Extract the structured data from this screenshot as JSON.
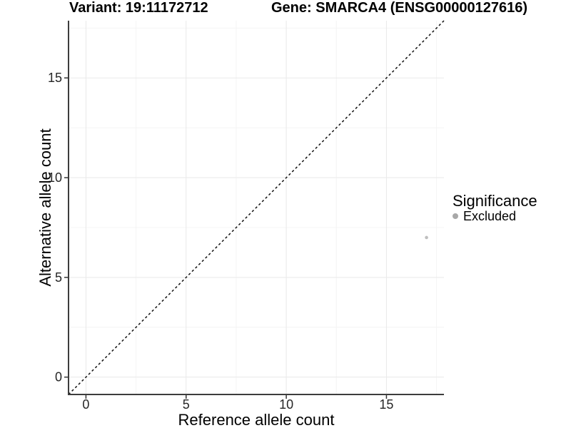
{
  "header": {
    "variant_title": "Variant: 19:11172712",
    "gene_title": "Gene: SMARCA4 (ENSG00000127616)"
  },
  "chart_data": {
    "type": "scatter",
    "xlabel": "Reference allele count",
    "ylabel": "Alternative allele count",
    "xlim": [
      -0.87,
      17.87
    ],
    "ylim": [
      -0.87,
      17.87
    ],
    "xticks": [
      0,
      5,
      10,
      15
    ],
    "yticks": [
      0,
      5,
      10,
      15
    ],
    "x_minor": [
      2.5,
      7.5,
      12.5,
      17.5
    ],
    "y_minor": [
      2.5,
      7.5,
      12.5,
      17.5
    ],
    "grid": true,
    "legend_position": "right",
    "identity_line": {
      "slope": 1,
      "intercept": 0,
      "style": "dashed",
      "color": "#111111"
    },
    "legend": {
      "title": "Significance",
      "items": [
        {
          "label": "Excluded",
          "color": "#a8a8a8"
        }
      ]
    },
    "series": [
      {
        "name": "Excluded",
        "color": "#bfbfbf",
        "points": [
          {
            "x": 17,
            "y": 7
          }
        ]
      }
    ]
  },
  "colors": {
    "background": "#ffffff",
    "grid_major": "#e9e9e9",
    "grid_minor": "#f4f4f4",
    "axis_line": "#3c3c3c",
    "tick": "#333333",
    "tick_label": "#262626",
    "axis_title": "#000000"
  }
}
